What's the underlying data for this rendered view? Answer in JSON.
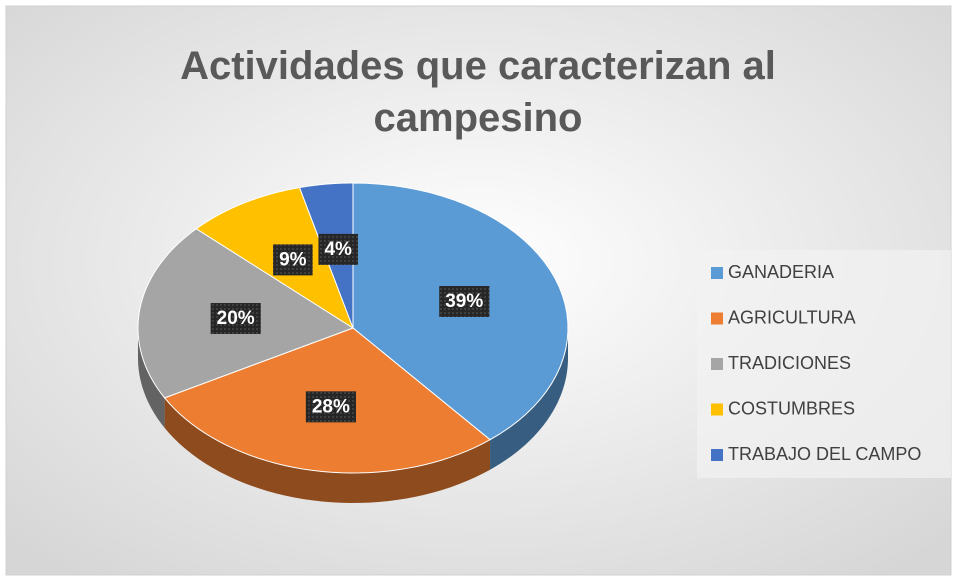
{
  "chart_data": {
    "type": "pie",
    "title": "Actividades que caracterizan al campesino",
    "categories": [
      "GANADERIA",
      "AGRICULTURA",
      "TRADICIONES",
      "COSTUMBRES",
      "TRABAJO DEL CAMPO"
    ],
    "values": [
      39,
      28,
      20,
      9,
      4
    ],
    "value_labels": [
      "39%",
      "28%",
      "20%",
      "9%",
      "4%"
    ],
    "colors": [
      "#5b9bd5",
      "#ed7d31",
      "#a5a5a5",
      "#ffc000",
      "#4472c4"
    ],
    "legend": "right"
  }
}
